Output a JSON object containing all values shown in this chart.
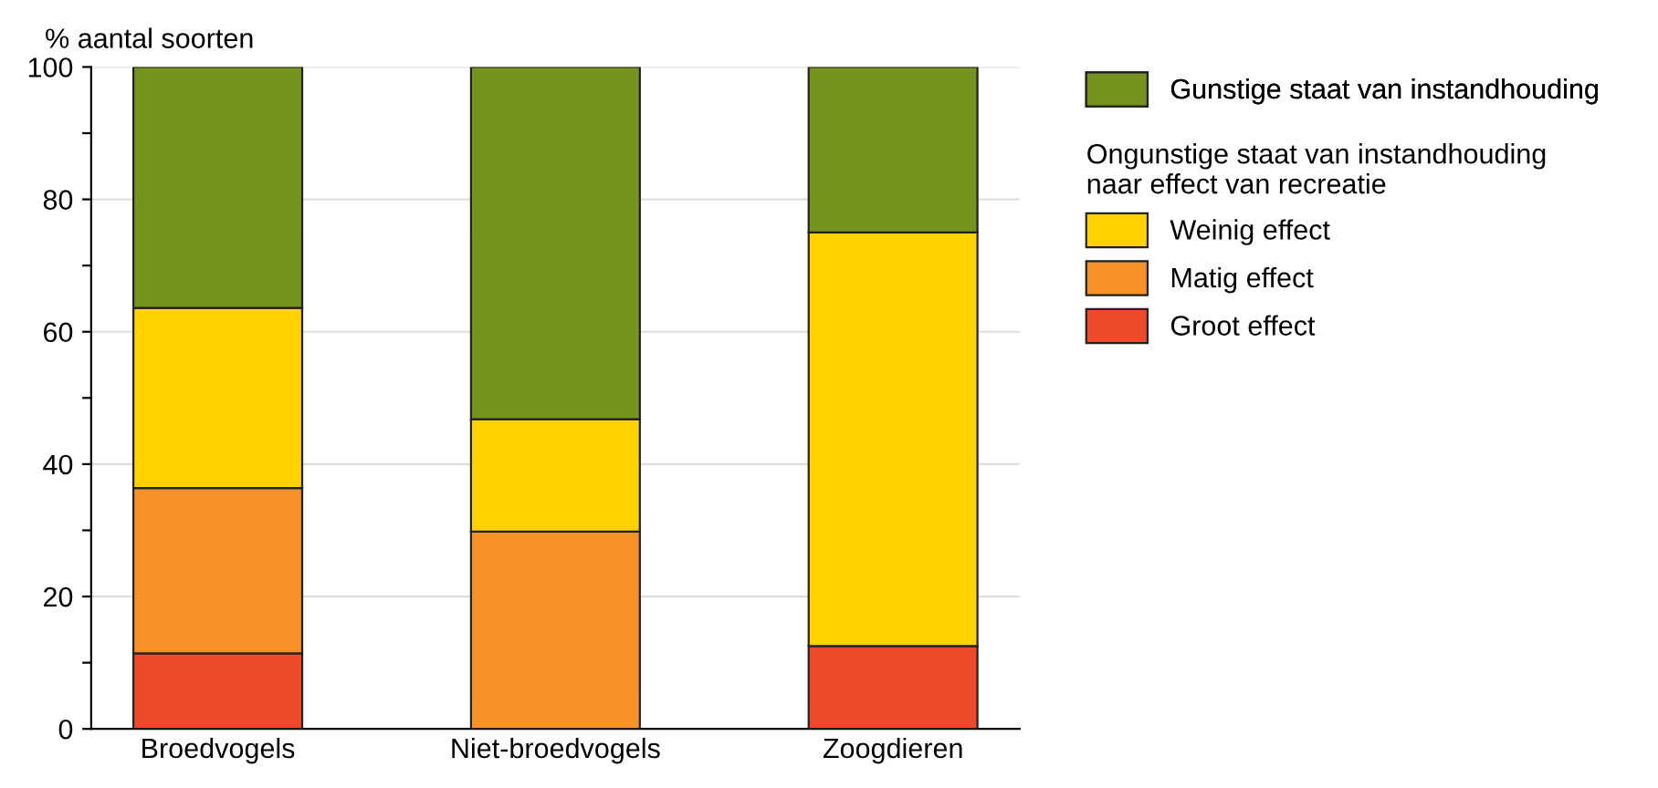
{
  "chart_data": {
    "type": "bar",
    "stacked": true,
    "ylabel": "% aantal soorten",
    "categories": [
      "Broedvogels",
      "Niet-broedvogels",
      "Zoogdieren"
    ],
    "series": [
      {
        "name": "Groot effect",
        "color": "#ec4a2b",
        "values": [
          11.4,
          0,
          12.5
        ]
      },
      {
        "name": "Matig effect",
        "color": "#f7922a",
        "values": [
          25.0,
          29.8,
          0
        ]
      },
      {
        "name": "Weinig effect",
        "color": "#ffd200",
        "values": [
          27.2,
          17.0,
          62.5
        ]
      },
      {
        "name": "Gunstige staat van instandhouding",
        "color": "#76921f",
        "values": [
          36.4,
          53.2,
          25.0
        ]
      }
    ],
    "legend_title": "Ongunstige staat van instandhouding\nnaar effect van recreatie",
    "ylim": [
      0,
      100
    ],
    "yticks": [
      0,
      {
        "value": 10,
        "label": null
      },
      20,
      {
        "value": 30,
        "label": null
      },
      40,
      {
        "value": 50,
        "label": null
      },
      60,
      {
        "value": 70,
        "label": null
      },
      80,
      {
        "value": 90,
        "label": null
      },
      100
    ],
    "grid": "y",
    "legend": "right"
  }
}
